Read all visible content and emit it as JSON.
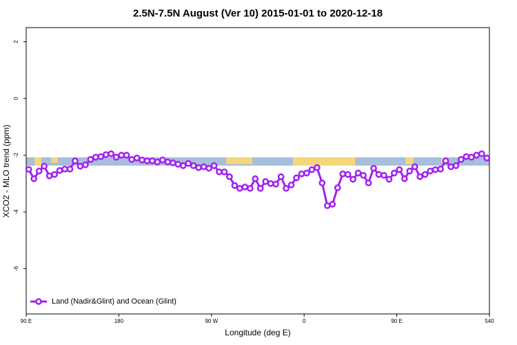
{
  "chart_data": {
    "type": "line",
    "title": "2.5N-7.5N August (Ver 10)   2015-01-01 to 2020-12-18",
    "x_label": "Longitude (deg E)",
    "y_label": "XCO2 - MLO trend (ppm)",
    "xlim": [
      90,
      540
    ],
    "xticks": [
      {
        "value": 90,
        "label": "90 E"
      },
      180,
      {
        "value": 270,
        "label": "90 W"
      },
      {
        "value": 360,
        "label": "0"
      },
      {
        "value": 450,
        "label": "90 E"
      },
      540
    ],
    "ylim": [
      -7.6,
      2.5
    ],
    "yticks": [
      -6,
      -4,
      -2,
      0,
      2
    ],
    "legend": "bottom-left",
    "x": [
      92.5,
      97.5,
      102.5,
      107.5,
      112.5,
      117.5,
      122.5,
      127.5,
      132.5,
      137.5,
      142.5,
      147.5,
      152.5,
      157.5,
      162.5,
      167.5,
      172.5,
      177.5,
      182.5,
      187.5,
      192.5,
      197.5,
      202.5,
      207.5,
      212.5,
      217.5,
      222.5,
      227.5,
      232.5,
      237.5,
      242.5,
      247.5,
      252.5,
      257.5,
      262.5,
      267.5,
      272.5,
      277.5,
      282.5,
      287.5,
      292.5,
      297.5,
      302.5,
      307.5,
      312.5,
      317.5,
      322.5,
      327.5,
      332.5,
      337.5,
      342.5,
      347.5,
      352.5,
      357.5,
      362.5,
      367.5,
      372.5,
      377.5,
      382.5,
      387.5,
      392.5,
      397.5,
      402.5,
      407.5,
      412.5,
      417.5,
      422.5,
      427.5,
      432.5,
      437.5,
      442.5,
      447.5,
      452.5,
      457.5,
      462.5,
      467.5,
      472.5,
      477.5,
      482.5,
      487.5,
      492.5,
      497.5,
      502.5,
      507.5,
      512.5,
      517.5,
      522.5,
      527.5,
      532.5,
      537.5
    ],
    "series": [
      {
        "name": "Land (Nadir&Glint) and Ocean (Glint)",
        "color": "#a020f0",
        "values": [
          -2.5,
          -2.83,
          -2.56,
          -2.39,
          -2.73,
          -2.68,
          -2.54,
          -2.49,
          -2.49,
          -2.2,
          -2.39,
          -2.34,
          -2.15,
          -2.07,
          -2.05,
          -1.98,
          -1.95,
          -2.07,
          -2.0,
          -2.0,
          -2.15,
          -2.1,
          -2.17,
          -2.2,
          -2.2,
          -2.24,
          -2.17,
          -2.24,
          -2.27,
          -2.32,
          -2.37,
          -2.29,
          -2.37,
          -2.44,
          -2.41,
          -2.46,
          -2.37,
          -2.59,
          -2.59,
          -2.76,
          -3.07,
          -3.17,
          -3.12,
          -3.17,
          -2.83,
          -3.17,
          -2.93,
          -3.0,
          -3.02,
          -2.76,
          -3.17,
          -3.05,
          -2.8,
          -2.66,
          -2.63,
          -2.51,
          -2.44,
          -2.98,
          -3.78,
          -3.73,
          -3.15,
          -2.66,
          -2.68,
          -2.85,
          -2.63,
          -2.71,
          -2.98,
          -2.46,
          -2.68,
          -2.71,
          -2.85,
          -2.63,
          -2.51,
          -2.83,
          -2.56,
          -2.41,
          -2.76,
          -2.68,
          -2.56,
          -2.51,
          -2.49,
          -2.2,
          -2.41,
          -2.37,
          -2.15,
          -2.05,
          -2.07,
          -2.0,
          -1.95,
          -2.1
        ]
      }
    ]
  }
}
